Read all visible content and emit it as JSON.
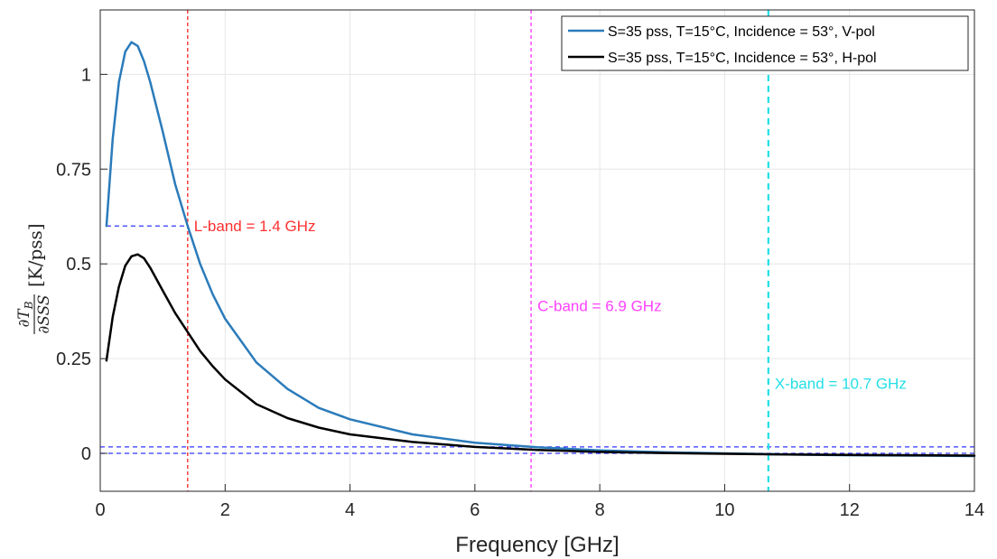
{
  "chart_data": {
    "type": "line",
    "xlabel": "Frequency [GHz]",
    "ylabel": {
      "numerator": "∂T",
      "numerator_sub": "B",
      "denominator": "∂SSS",
      "unit": "[K/pss]"
    },
    "xlim": [
      0,
      14
    ],
    "ylim": [
      -0.1,
      1.17
    ],
    "xticks": [
      0,
      2,
      4,
      6,
      8,
      10,
      12,
      14
    ],
    "xtick_labels": [
      "0",
      "2",
      "4",
      "6",
      "8",
      "10",
      "12",
      "14"
    ],
    "yticks": [
      0,
      0.25,
      0.5,
      0.75,
      1
    ],
    "ytick_labels": [
      "0",
      "0.25",
      "0.5",
      "0.75",
      "1"
    ],
    "grid": true,
    "legend_position": "top-right",
    "series": [
      {
        "name": "S=35 pss, T=15°C, Incidence = 53°, V-pol",
        "color": "#2b7bba",
        "x": [
          0.1,
          0.2,
          0.3,
          0.4,
          0.5,
          0.6,
          0.7,
          0.8,
          1.0,
          1.2,
          1.4,
          1.6,
          1.8,
          2.0,
          2.5,
          3.0,
          3.5,
          4.0,
          5.0,
          6.0,
          7.0,
          8.0,
          9.0,
          10.0,
          11.0,
          12.0,
          13.0,
          14.0
        ],
        "y": [
          0.6,
          0.83,
          0.98,
          1.06,
          1.085,
          1.075,
          1.035,
          0.98,
          0.85,
          0.71,
          0.6,
          0.5,
          0.42,
          0.355,
          0.24,
          0.17,
          0.12,
          0.09,
          0.05,
          0.028,
          0.016,
          0.008,
          0.003,
          0.0,
          -0.003,
          -0.005,
          -0.006,
          -0.007
        ]
      },
      {
        "name": "S=35 pss, T=15°C, Incidence = 53°, H-pol",
        "color": "#000000",
        "x": [
          0.1,
          0.2,
          0.3,
          0.4,
          0.5,
          0.6,
          0.7,
          0.8,
          1.0,
          1.2,
          1.4,
          1.6,
          1.8,
          2.0,
          2.5,
          3.0,
          3.5,
          4.0,
          5.0,
          6.0,
          7.0,
          8.0,
          9.0,
          10.0,
          11.0,
          12.0,
          13.0,
          14.0
        ],
        "y": [
          0.245,
          0.36,
          0.44,
          0.495,
          0.52,
          0.525,
          0.515,
          0.49,
          0.43,
          0.37,
          0.32,
          0.27,
          0.23,
          0.195,
          0.13,
          0.093,
          0.068,
          0.05,
          0.03,
          0.017,
          0.009,
          0.004,
          0.001,
          -0.001,
          -0.003,
          -0.004,
          -0.005,
          -0.006
        ]
      }
    ],
    "vertical_lines": [
      {
        "x": 1.4,
        "color": "#ff3030",
        "label": "L-band = 1.4 GHz",
        "label_y": 0.6,
        "style": "dotted"
      },
      {
        "x": 6.9,
        "color": "#ff40ff",
        "label": "C-band = 6.9 GHz",
        "label_y": 0.39,
        "style": "dotted"
      },
      {
        "x": 10.7,
        "color": "#22dfe6",
        "label": "X-band = 10.7 GHz",
        "label_y": 0.185,
        "style": "dashed"
      }
    ],
    "horizontal_lines": [
      {
        "y": 0.6,
        "x_from": 0.1,
        "x_to": 1.4,
        "color": "#3333ff"
      },
      {
        "y": 0.017,
        "x_from": 0,
        "x_to": 14,
        "color": "#3333ff"
      },
      {
        "y": 0.0,
        "x_from": 0,
        "x_to": 14,
        "color": "#3333ff"
      }
    ]
  }
}
